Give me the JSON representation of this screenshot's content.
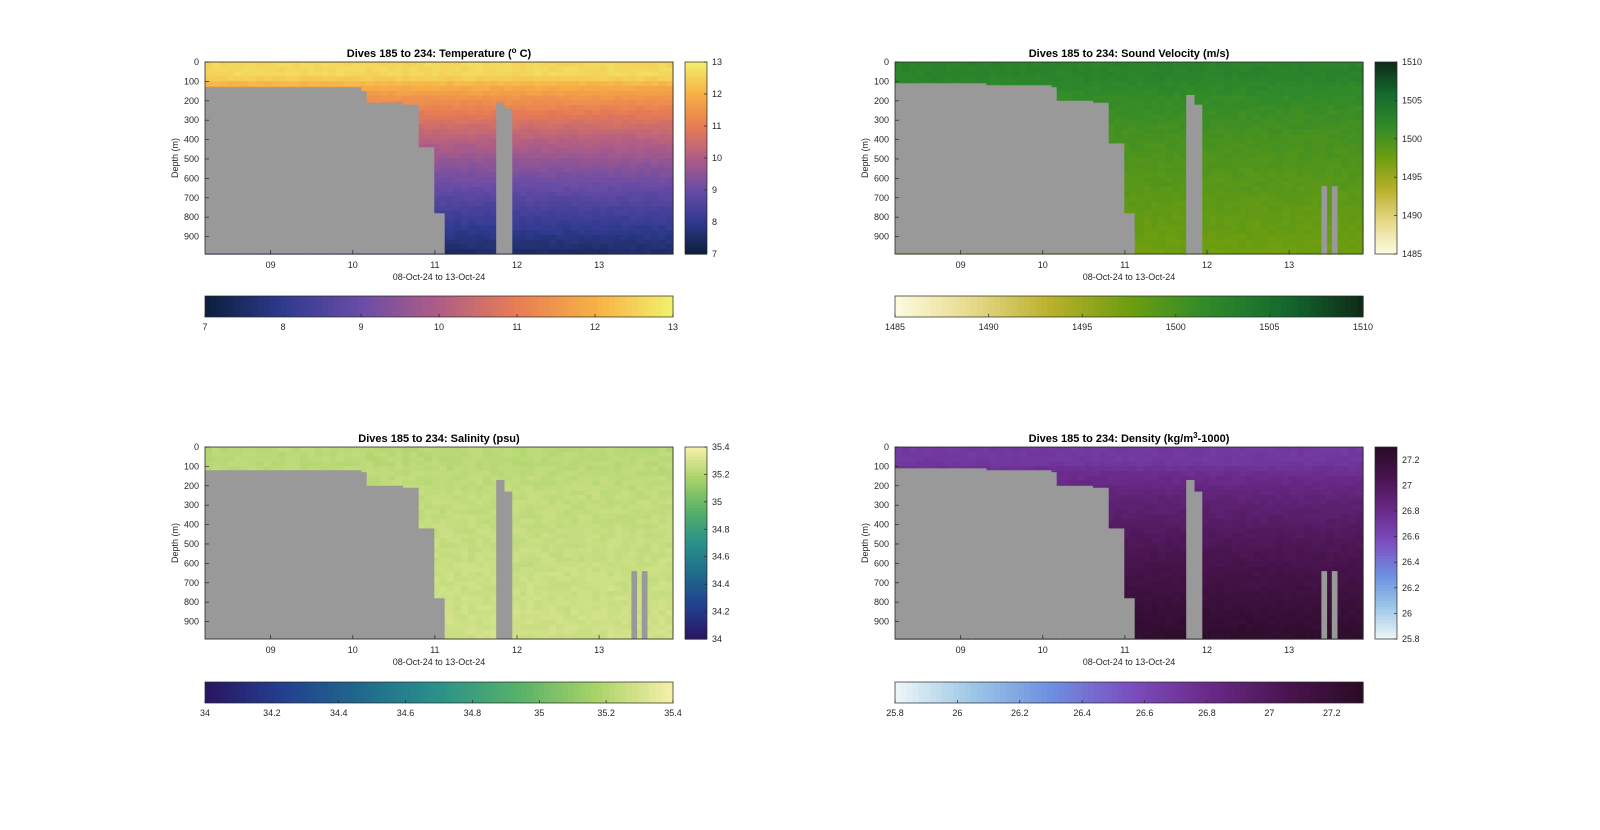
{
  "chart_data": [
    {
      "type": "heatmap",
      "title": "Dives 185 to 234: Temperature (",
      "title_sup": "o",
      "title_post": " C)",
      "ylabel": "Depth (m)",
      "xlabel": "08-Oct-24 to 13-Oct-24",
      "x_ticks": [
        "09",
        "10",
        "11",
        "12",
        "13"
      ],
      "x_tick_values": [
        9,
        10,
        11,
        12,
        13
      ],
      "xlim": [
        8.2,
        13.9
      ],
      "y_ticks": [
        0,
        100,
        200,
        300,
        400,
        500,
        600,
        700,
        800,
        900
      ],
      "ylim": [
        0,
        990
      ],
      "y_reversed": true,
      "colormap": [
        "#0b1e3a",
        "#2f3a8f",
        "#6a4ca6",
        "#b05d86",
        "#e87d53",
        "#f7b045",
        "#f1f16c"
      ],
      "clim": [
        7,
        13
      ],
      "colorbar_ticks": [
        7,
        8,
        9,
        10,
        11,
        12,
        13
      ],
      "mask_color": "#999999",
      "surface_value": 12.6,
      "bottom_value": 7.5,
      "mixed_layer_depth": 80,
      "mask_profile": [
        [
          8.2,
          130
        ],
        [
          9.3,
          130
        ],
        [
          10.1,
          150
        ],
        [
          10.15,
          210
        ],
        [
          10.6,
          220
        ],
        [
          10.8,
          440
        ],
        [
          11.0,
          780
        ],
        [
          11.1,
          990
        ]
      ],
      "mask_columns": [
        [
          11.75,
          11.85,
          210
        ],
        [
          11.85,
          11.95,
          240
        ]
      ]
    },
    {
      "type": "heatmap",
      "title": "Dives 185 to 234: Sound Velocity (m/s)",
      "ylabel": "Depth (m)",
      "xlabel": "08-Oct-24 to 13-Oct-24",
      "x_ticks": [
        "09",
        "10",
        "11",
        "12",
        "13"
      ],
      "x_tick_values": [
        9,
        10,
        11,
        12,
        13
      ],
      "xlim": [
        8.2,
        13.9
      ],
      "y_ticks": [
        0,
        100,
        200,
        300,
        400,
        500,
        600,
        700,
        800,
        900
      ],
      "ylim": [
        0,
        990
      ],
      "y_reversed": true,
      "colormap": [
        "#fdfbe0",
        "#e6d98a",
        "#b9b02a",
        "#6e9e10",
        "#2f8a2a",
        "#146a2e",
        "#0f2a18"
      ],
      "clim": [
        1485,
        1510
      ],
      "colorbar_ticks": [
        1485,
        1490,
        1495,
        1500,
        1505,
        1510
      ],
      "mask_color": "#999999",
      "surface_value": 1502.5,
      "bottom_value": 1497.5,
      "mixed_layer_depth": 80,
      "mask_profile": [
        [
          8.2,
          110
        ],
        [
          9.3,
          120
        ],
        [
          10.1,
          130
        ],
        [
          10.15,
          200
        ],
        [
          10.6,
          210
        ],
        [
          10.8,
          420
        ],
        [
          11.0,
          780
        ],
        [
          11.1,
          990
        ]
      ],
      "mask_columns": [
        [
          11.75,
          11.85,
          170
        ],
        [
          11.85,
          11.95,
          220
        ],
        [
          13.4,
          13.47,
          640
        ],
        [
          13.52,
          13.58,
          640
        ]
      ]
    },
    {
      "type": "heatmap",
      "title": "Dives 185 to 234: Salinity (psu)",
      "ylabel": "Depth (m)",
      "xlabel": "08-Oct-24 to 13-Oct-24",
      "x_ticks": [
        "09",
        "10",
        "11",
        "12",
        "13"
      ],
      "x_tick_values": [
        9,
        10,
        11,
        12,
        13
      ],
      "xlim": [
        8.2,
        13.9
      ],
      "y_ticks": [
        0,
        100,
        200,
        300,
        400,
        500,
        600,
        700,
        800,
        900
      ],
      "ylim": [
        0,
        990
      ],
      "y_reversed": true,
      "colormap": [
        "#2a1561",
        "#223f8f",
        "#1f6a8c",
        "#2a918a",
        "#56b169",
        "#a8d268",
        "#f7f0a8"
      ],
      "clim": [
        34,
        35.4
      ],
      "colorbar_ticks": [
        34,
        34.2,
        34.4,
        34.6,
        34.8,
        35,
        35.2,
        35.4
      ],
      "mask_color": "#999999",
      "surface_value": 35.22,
      "bottom_value": 35.28,
      "mixed_layer_depth": 80,
      "mask_profile": [
        [
          8.2,
          120
        ],
        [
          9.3,
          120
        ],
        [
          10.1,
          130
        ],
        [
          10.15,
          200
        ],
        [
          10.6,
          210
        ],
        [
          10.8,
          420
        ],
        [
          11.0,
          780
        ],
        [
          11.1,
          990
        ]
      ],
      "mask_columns": [
        [
          11.75,
          11.85,
          170
        ],
        [
          11.85,
          11.95,
          230
        ],
        [
          13.4,
          13.47,
          640
        ],
        [
          13.52,
          13.58,
          640
        ]
      ]
    },
    {
      "type": "heatmap",
      "title": "Dives 185 to 234: Density (kg/m",
      "title_sup": "3",
      "title_post": "-1000)",
      "ylabel": "Depth (m)",
      "xlabel": "08-Oct-24 to 13-Oct-24",
      "x_ticks": [
        "09",
        "10",
        "11",
        "12",
        "13"
      ],
      "x_tick_values": [
        9,
        10,
        11,
        12,
        13
      ],
      "xlim": [
        8.2,
        13.9
      ],
      "y_ticks": [
        0,
        100,
        200,
        300,
        400,
        500,
        600,
        700,
        800,
        900
      ],
      "ylim": [
        0,
        990
      ],
      "y_reversed": true,
      "colormap": [
        "#eef6f7",
        "#9cc7e6",
        "#6d8fe0",
        "#7c4fc0",
        "#6a2a8a",
        "#4a1550",
        "#2a0a25"
      ],
      "clim": [
        25.8,
        27.3
      ],
      "colorbar_ticks": [
        25.8,
        26,
        26.2,
        26.4,
        26.6,
        26.8,
        27,
        27.2
      ],
      "mask_color": "#999999",
      "surface_value": 26.7,
      "bottom_value": 27.25,
      "mixed_layer_depth": 80,
      "mask_profile": [
        [
          8.2,
          110
        ],
        [
          9.3,
          120
        ],
        [
          10.1,
          130
        ],
        [
          10.15,
          200
        ],
        [
          10.6,
          210
        ],
        [
          10.8,
          420
        ],
        [
          11.0,
          780
        ],
        [
          11.1,
          990
        ]
      ],
      "mask_columns": [
        [
          11.75,
          11.85,
          170
        ],
        [
          11.85,
          11.95,
          230
        ],
        [
          13.4,
          13.47,
          640
        ],
        [
          13.52,
          13.58,
          640
        ]
      ]
    }
  ]
}
